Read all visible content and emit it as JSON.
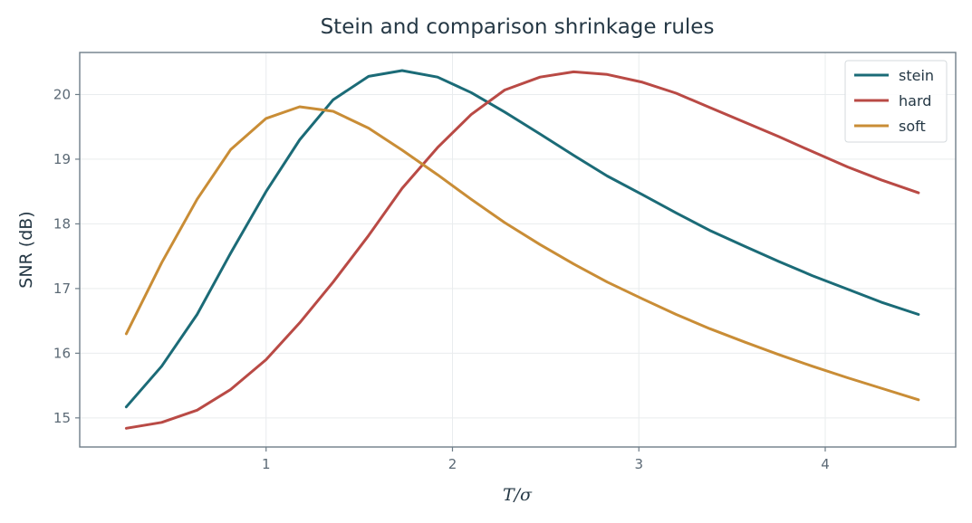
{
  "chart_data": {
    "type": "line",
    "title": "Stein and comparison shrinkage rules",
    "xlabel": "T/σ",
    "ylabel": "SNR (dB)",
    "xlim": [
      0.0,
      4.7
    ],
    "ylim": [
      14.55,
      20.65
    ],
    "xticks": [
      1,
      2,
      3,
      4
    ],
    "yticks": [
      15,
      16,
      17,
      18,
      19,
      20
    ],
    "grid": true,
    "legend_position": "top-right",
    "x": [
      0.25,
      0.44,
      0.63,
      0.81,
      1.0,
      1.18,
      1.36,
      1.55,
      1.73,
      1.92,
      2.1,
      2.28,
      2.47,
      2.65,
      2.83,
      3.02,
      3.2,
      3.38,
      3.57,
      3.75,
      3.93,
      4.12,
      4.3,
      4.5
    ],
    "series": [
      {
        "name": "stein",
        "color": "#1b6b77",
        "values": [
          15.17,
          15.8,
          16.6,
          17.55,
          18.5,
          19.3,
          19.92,
          20.28,
          20.37,
          20.27,
          20.03,
          19.73,
          19.39,
          19.06,
          18.74,
          18.45,
          18.17,
          17.9,
          17.65,
          17.42,
          17.2,
          16.99,
          16.79,
          16.6
        ]
      },
      {
        "name": "hard",
        "color": "#b94a45",
        "values": [
          14.84,
          14.93,
          15.12,
          15.44,
          15.9,
          16.47,
          17.1,
          17.82,
          18.55,
          19.18,
          19.69,
          20.07,
          20.27,
          20.35,
          20.31,
          20.19,
          20.02,
          19.8,
          19.57,
          19.35,
          19.12,
          18.88,
          18.68,
          18.48
        ]
      },
      {
        "name": "soft",
        "color": "#c98d36",
        "values": [
          16.3,
          17.4,
          18.38,
          19.15,
          19.63,
          19.81,
          19.74,
          19.48,
          19.14,
          18.76,
          18.38,
          18.02,
          17.68,
          17.38,
          17.1,
          16.84,
          16.6,
          16.38,
          16.17,
          15.98,
          15.8,
          15.62,
          15.46,
          15.28
        ]
      }
    ]
  }
}
